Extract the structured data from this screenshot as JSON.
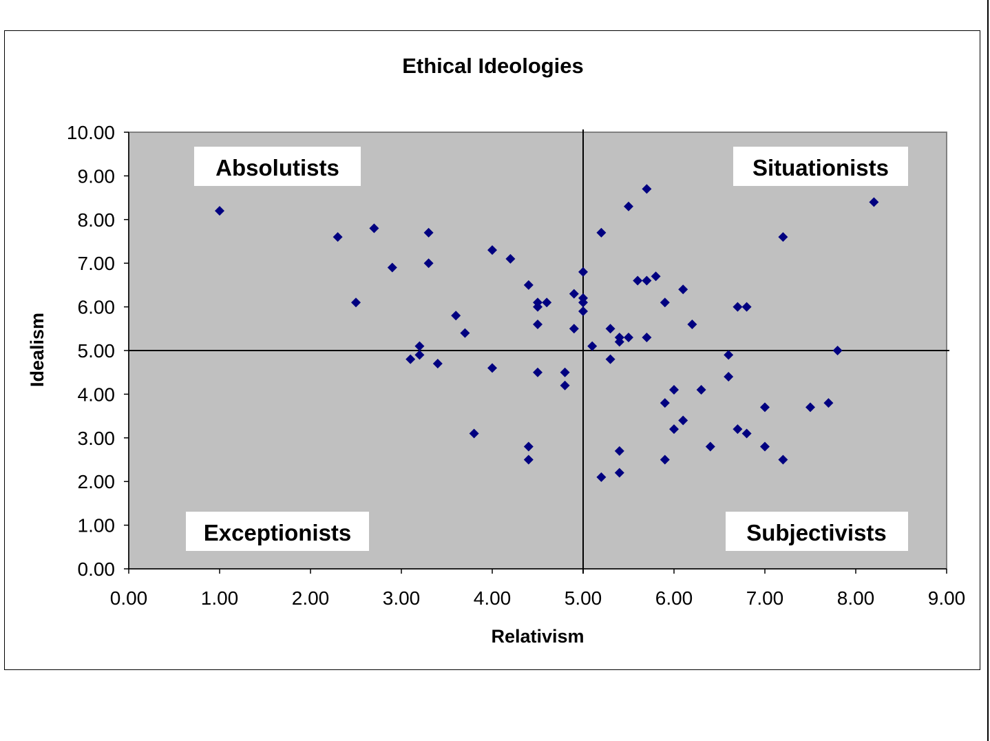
{
  "chart_data": {
    "type": "scatter",
    "title": "Ethical Ideologies",
    "xlabel": "Relativism",
    "ylabel": "Idealism",
    "xlim": [
      0,
      9
    ],
    "ylim": [
      0,
      10
    ],
    "x_ticks": [
      "0.00",
      "1.00",
      "2.00",
      "3.00",
      "4.00",
      "5.00",
      "6.00",
      "7.00",
      "8.00",
      "9.00"
    ],
    "y_ticks": [
      "0.00",
      "1.00",
      "2.00",
      "3.00",
      "4.00",
      "5.00",
      "6.00",
      "7.00",
      "8.00",
      "9.00",
      "10.00"
    ],
    "reference_lines": {
      "x": 5.0,
      "y": 5.0
    },
    "quadrant_labels": {
      "top_left": "Absolutists",
      "top_right": "Situationists",
      "bottom_left": "Exceptionists",
      "bottom_right": "Subjectivists"
    },
    "grid": false,
    "legend": "none",
    "plot_background": "#c0c0c0",
    "marker_color": "#000080",
    "marker": "diamond",
    "points": [
      [
        1.0,
        8.2
      ],
      [
        2.3,
        7.6
      ],
      [
        2.5,
        6.1
      ],
      [
        2.7,
        7.8
      ],
      [
        2.9,
        6.9
      ],
      [
        3.1,
        4.8
      ],
      [
        3.2,
        5.1
      ],
      [
        3.2,
        4.9
      ],
      [
        3.3,
        7.7
      ],
      [
        3.3,
        7.0
      ],
      [
        3.4,
        4.7
      ],
      [
        3.6,
        5.8
      ],
      [
        3.7,
        5.4
      ],
      [
        3.8,
        3.1
      ],
      [
        4.0,
        7.3
      ],
      [
        4.0,
        4.6
      ],
      [
        4.2,
        7.1
      ],
      [
        4.4,
        6.5
      ],
      [
        4.4,
        2.8
      ],
      [
        4.4,
        2.5
      ],
      [
        4.5,
        6.1
      ],
      [
        4.5,
        6.0
      ],
      [
        4.5,
        5.6
      ],
      [
        4.5,
        4.5
      ],
      [
        4.6,
        6.1
      ],
      [
        4.8,
        4.5
      ],
      [
        4.8,
        4.2
      ],
      [
        4.9,
        6.3
      ],
      [
        4.9,
        5.5
      ],
      [
        5.0,
        6.8
      ],
      [
        5.0,
        6.2
      ],
      [
        5.0,
        6.1
      ],
      [
        5.0,
        5.9
      ],
      [
        5.1,
        5.1
      ],
      [
        5.2,
        7.7
      ],
      [
        5.2,
        2.1
      ],
      [
        5.3,
        5.5
      ],
      [
        5.3,
        4.8
      ],
      [
        5.4,
        5.3
      ],
      [
        5.4,
        5.2
      ],
      [
        5.4,
        2.7
      ],
      [
        5.4,
        2.2
      ],
      [
        5.5,
        8.3
      ],
      [
        5.5,
        5.3
      ],
      [
        5.6,
        6.6
      ],
      [
        5.7,
        8.7
      ],
      [
        5.7,
        6.6
      ],
      [
        5.7,
        5.3
      ],
      [
        5.8,
        6.7
      ],
      [
        5.9,
        6.1
      ],
      [
        5.9,
        3.8
      ],
      [
        5.9,
        2.5
      ],
      [
        6.0,
        4.1
      ],
      [
        6.0,
        3.2
      ],
      [
        6.1,
        6.4
      ],
      [
        6.1,
        3.4
      ],
      [
        6.2,
        5.6
      ],
      [
        6.3,
        4.1
      ],
      [
        6.4,
        2.8
      ],
      [
        6.6,
        4.9
      ],
      [
        6.6,
        4.4
      ],
      [
        6.7,
        6.0
      ],
      [
        6.7,
        3.2
      ],
      [
        6.8,
        6.0
      ],
      [
        6.8,
        3.1
      ],
      [
        7.0,
        3.7
      ],
      [
        7.0,
        2.8
      ],
      [
        7.2,
        7.6
      ],
      [
        7.2,
        2.5
      ],
      [
        7.5,
        3.7
      ],
      [
        7.7,
        3.8
      ],
      [
        7.8,
        5.0
      ],
      [
        8.2,
        8.4
      ]
    ]
  }
}
